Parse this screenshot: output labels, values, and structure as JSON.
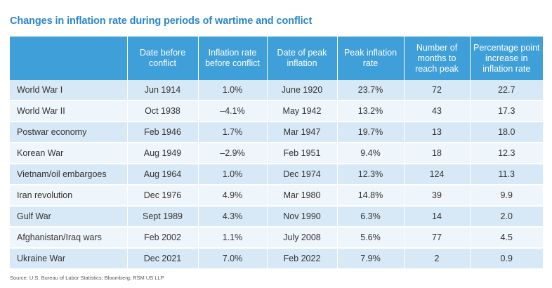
{
  "title": "Changes in inflation rate during periods of wartime and conflict",
  "table": {
    "headers": [
      "",
      "Date before conflict",
      "Inflation rate before conflict",
      "Date of peak inflation",
      "Peak inflation rate",
      "Number of months to reach peak",
      "Percentage point increase in inflation rate"
    ],
    "rows": [
      {
        "label": "World War I",
        "date_before": "Jun 1914",
        "rate_before": "1.0%",
        "date_peak": "June 1920",
        "peak_rate": "23.7%",
        "months": "72",
        "increase": "22.7"
      },
      {
        "label": "World War II",
        "date_before": "Oct 1938",
        "rate_before": "–4.1%",
        "date_peak": "May 1942",
        "peak_rate": "13.2%",
        "months": "43",
        "increase": "17.3"
      },
      {
        "label": "Postwar economy",
        "date_before": "Feb 1946",
        "rate_before": "1.7%",
        "date_peak": "Mar 1947",
        "peak_rate": "19.7%",
        "months": "13",
        "increase": "18.0"
      },
      {
        "label": "Korean War",
        "date_before": "Aug 1949",
        "rate_before": "–2.9%",
        "date_peak": "Feb 1951",
        "peak_rate": "9.4%",
        "months": "18",
        "increase": "12.3"
      },
      {
        "label": "Vietnam/oil embargoes",
        "date_before": "Aug 1964",
        "rate_before": "1.0%",
        "date_peak": "Dec 1974",
        "peak_rate": "12.3%",
        "months": "124",
        "increase": "11.3"
      },
      {
        "label": "Iran revolution",
        "date_before": "Dec 1976",
        "rate_before": "4.9%",
        "date_peak": "Mar 1980",
        "peak_rate": "14.8%",
        "months": "39",
        "increase": "9.9"
      },
      {
        "label": "Gulf War",
        "date_before": "Sept 1989",
        "rate_before": "4.3%",
        "date_peak": "Nov 1990",
        "peak_rate": "6.3%",
        "months": "14",
        "increase": "2.0"
      },
      {
        "label": "Afghanistan/Iraq wars",
        "date_before": "Feb 2002",
        "rate_before": "1.1%",
        "date_peak": "July 2008",
        "peak_rate": "5.6%",
        "months": "77",
        "increase": "4.5"
      },
      {
        "label": "Ukraine War",
        "date_before": "Dec 2021",
        "rate_before": "7.0%",
        "date_peak": "Feb 2022",
        "peak_rate": "7.9%",
        "months": "2",
        "increase": "0.9"
      }
    ]
  },
  "source": "Source: U.S. Bureau of Labor Statistics; Bloomberg; RSM US LLP",
  "colors": {
    "title": "#2a86c9",
    "header_bg": "#3f9fd9",
    "row_odd": "#d7e9f6",
    "row_even": "#eef5fb"
  }
}
